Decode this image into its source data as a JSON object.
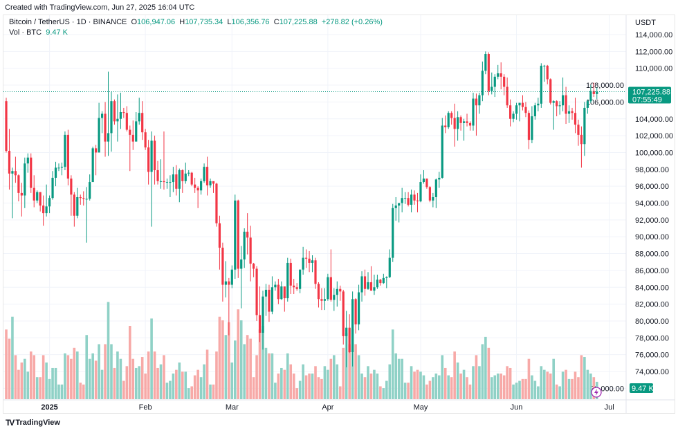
{
  "header": {
    "created": "Created with TradingView.com, Jun 27, 2025 16:04 UTC"
  },
  "legend": {
    "symbol": "Bitcoin / TetherUS · 1D · BINANCE",
    "o_label": "O",
    "o": "106,947.06",
    "h_label": "H",
    "h": "107,735.34",
    "l_label": "L",
    "l": "106,356.76",
    "c_label": "C",
    "c": "107,225.88",
    "change": "+278.82 (+0.26%)",
    "vol_label": "Vol · BTC",
    "vol": "9.47 K"
  },
  "footer": {
    "brand": "TradingView"
  },
  "chart_data": {
    "type": "candlestick",
    "currency": "USDT",
    "start_date": "2024-12-18",
    "interval": "1D",
    "first_open": 106100,
    "close": [
      100200,
      97500,
      97800,
      97300,
      95200,
      94900,
      98700,
      99400,
      95800,
      94300,
      95300,
      93700,
      92800,
      93600,
      94600,
      97000,
      98200,
      98200,
      98300,
      102100,
      96900,
      95000,
      92500,
      94700,
      94600,
      94500,
      94500,
      96500,
      100500,
      100000,
      104100,
      104600,
      101300,
      102300,
      106100,
      103700,
      104000,
      104800,
      104700,
      102700,
      102100,
      101300,
      103700,
      104700,
      102400,
      100600,
      97700,
      101400,
      97900,
      96600,
      96600,
      96500,
      96500,
      96500,
      97400,
      95700,
      97900,
      96600,
      97500,
      97600,
      96200,
      95800,
      95500,
      96600,
      98300,
      96100,
      96600,
      96300,
      91600,
      88700,
      84300,
      84700,
      84300,
      86100,
      94300,
      86200,
      87300,
      90600,
      89900,
      86800,
      86200,
      80700,
      78600,
      82900,
      83700,
      81100,
      84000,
      84300,
      82600,
      84100,
      82700,
      86900,
      84200,
      84000,
      83800,
      86100,
      87500,
      87400,
      86900,
      87200,
      84400,
      82600,
      82400,
      82600,
      85200,
      82500,
      83100,
      83800,
      83500,
      78200,
      79200,
      76300,
      82600,
      79600,
      83400,
      85300,
      83800,
      84600,
      83600,
      84000,
      84900,
      84500,
      85100,
      85200,
      87500,
      93400,
      93700,
      94000,
      94600,
      94600,
      93800,
      95000,
      94300,
      94200,
      96500,
      96900,
      95900,
      94300,
      94700,
      96800,
      97000,
      103200,
      103000,
      104700,
      104100,
      102800,
      104200,
      103500,
      103700,
      103500,
      103200,
      106400,
      105600,
      106800,
      109700,
      111700,
      107300,
      107800,
      109000,
      109400,
      109000,
      107800,
      105600,
      104000,
      104600,
      105600,
      105900,
      105400,
      104700,
      101500,
      104300,
      105600,
      105800,
      110300,
      110300,
      108700,
      105900,
      106100,
      105500,
      105600,
      106800,
      104600,
      104900,
      104700,
      103300,
      102100,
      101000,
      105300,
      106100,
      107300,
      106947,
      107226
    ],
    "high": [
      106500,
      102800,
      98200,
      99500,
      97400,
      96400,
      99400,
      99900,
      99900,
      97300,
      95500,
      95300,
      94900,
      96200,
      94900,
      97800,
      98900,
      98700,
      98800,
      102500,
      102700,
      97300,
      95300,
      95800,
      95000,
      95400,
      95900,
      97400,
      100700,
      100900,
      105900,
      104900,
      106000,
      109600,
      107200,
      106300,
      106900,
      107100,
      105300,
      105500,
      103200,
      103800,
      104800,
      106500,
      106100,
      102800,
      101500,
      102500,
      102000,
      99000,
      99200,
      102500,
      96900,
      97300,
      98300,
      98500,
      98100,
      98000,
      98800,
      97900,
      97700,
      97000,
      96000,
      96900,
      98700,
      99500,
      96900,
      96500,
      96400,
      92500,
      89300,
      87100,
      85100,
      86600,
      95000,
      94400,
      88900,
      91000,
      92800,
      91300,
      86900,
      86500,
      84100,
      83600,
      84400,
      84300,
      85300,
      84700,
      85000,
      84700,
      84100,
      87500,
      87400,
      85000,
      84500,
      86100,
      88800,
      88500,
      88300,
      87800,
      87500,
      84600,
      83900,
      83900,
      85600,
      88500,
      83900,
      84700,
      84200,
      83700,
      81200,
      80800,
      83500,
      82700,
      84300,
      85900,
      86100,
      85800,
      86500,
      85500,
      85500,
      85000,
      85600,
      85300,
      88500,
      93900,
      94700,
      94000,
      95800,
      95300,
      95300,
      95600,
      95500,
      95200,
      97400,
      97900,
      96900,
      96000,
      95200,
      96900,
      97700,
      104100,
      104400,
      104900,
      104900,
      105800,
      104900,
      104400,
      104000,
      104600,
      103700,
      107100,
      107000,
      107100,
      110800,
      112000,
      111900,
      109500,
      109300,
      110400,
      110700,
      109300,
      108900,
      106300,
      104900,
      105900,
      105900,
      106800,
      106000,
      105000,
      105500,
      105900,
      106500,
      110600,
      110400,
      110400,
      108800,
      106200,
      106200,
      106100,
      108900,
      107800,
      105600,
      105300,
      106500,
      103900,
      103100,
      106000,
      106300,
      108000,
      108300,
      107735
    ],
    "low": [
      100000,
      95600,
      92200,
      96400,
      94200,
      92400,
      93400,
      97600,
      95200,
      93500,
      94000,
      93000,
      91300,
      92400,
      92800,
      94400,
      96000,
      97800,
      97300,
      97900,
      96100,
      92500,
      91200,
      92200,
      93800,
      93700,
      89300,
      94300,
      96500,
      97300,
      100000,
      102300,
      99500,
      99600,
      100100,
      103300,
      101300,
      102800,
      104100,
      102500,
      97800,
      100300,
      101300,
      103300,
      101500,
      100300,
      96200,
      91200,
      96200,
      96200,
      95700,
      95600,
      95700,
      94700,
      95300,
      94900,
      94100,
      95200,
      96300,
      97200,
      96000,
      95200,
      93400,
      95000,
      96400,
      94900,
      95800,
      95200,
      91200,
      86100,
      82300,
      82800,
      78300,
      83900,
      85000,
      85100,
      81500,
      86300,
      87900,
      84700,
      85200,
      80000,
      77500,
      76600,
      80600,
      79900,
      80800,
      83600,
      82000,
      82500,
      81100,
      82300,
      83200,
      83200,
      83600,
      83300,
      85500,
      86300,
      85800,
      85800,
      83800,
      81600,
      81300,
      81300,
      82400,
      82300,
      81200,
      81700,
      82400,
      77200,
      74500,
      76200,
      74600,
      78500,
      78900,
      82300,
      83000,
      83700,
      83600,
      83100,
      83800,
      84200,
      84400,
      83900,
      85100,
      87000,
      91900,
      91700,
      92900,
      93900,
      93600,
      92900,
      93800,
      92900,
      94100,
      96300,
      95700,
      94100,
      93500,
      93400,
      95800,
      96900,
      102300,
      102800,
      103300,
      100700,
      101400,
      102600,
      101400,
      103100,
      102600,
      102600,
      102000,
      104600,
      106100,
      109300,
      106800,
      106900,
      106600,
      108700,
      107500,
      106800,
      105300,
      103100,
      103600,
      103900,
      103700,
      105000,
      104200,
      100400,
      101100,
      103900,
      104900,
      105300,
      108400,
      108100,
      105700,
      102700,
      104300,
      104500,
      104900,
      103400,
      103500,
      103900,
      102300,
      100800,
      98200,
      99600,
      104600,
      105900,
      106600,
      106357
    ],
    "volume_k": [
      38,
      33,
      45,
      24,
      16,
      20,
      22,
      15,
      26,
      24,
      12,
      12,
      24,
      20,
      11,
      17,
      17,
      8,
      8,
      25,
      24,
      22,
      28,
      26,
      9,
      8,
      35,
      22,
      25,
      21,
      30,
      16,
      30,
      53,
      30,
      17,
      26,
      22,
      10,
      18,
      40,
      22,
      17,
      18,
      23,
      14,
      26,
      44,
      26,
      17,
      19,
      24,
      9,
      10,
      14,
      16,
      20,
      15,
      15,
      6,
      7,
      13,
      16,
      12,
      19,
      27,
      8,
      8,
      26,
      45,
      43,
      35,
      42,
      20,
      32,
      49,
      43,
      30,
      35,
      33,
      12,
      24,
      38,
      40,
      28,
      25,
      25,
      9,
      14,
      17,
      16,
      25,
      19,
      14,
      6,
      10,
      19,
      13,
      14,
      14,
      18,
      12,
      11,
      18,
      16,
      22,
      24,
      19,
      7,
      28,
      36,
      30,
      38,
      30,
      24,
      14,
      12,
      18,
      14,
      16,
      14,
      7,
      6,
      10,
      19,
      38,
      25,
      22,
      22,
      9,
      9,
      18,
      15,
      16,
      15,
      13,
      8,
      10,
      12,
      14,
      13,
      24,
      17,
      13,
      12,
      26,
      20,
      14,
      16,
      12,
      8,
      18,
      24,
      18,
      30,
      34,
      28,
      12,
      13,
      14,
      14,
      13,
      18,
      17,
      8,
      9,
      10,
      11,
      11,
      22,
      13,
      10,
      7,
      18,
      16,
      15,
      14,
      22,
      8,
      7,
      15,
      16,
      11,
      11,
      15,
      12,
      24,
      23,
      16,
      14,
      12,
      9.47
    ],
    "y_ticks": [
      "114,000.00",
      "112,000.00",
      "110,000.00",
      "108,000.00",
      "106,000.00",
      "104,000.00",
      "102,000.00",
      "100,000.00",
      "98,000.00",
      "96,000.00",
      "94,000.00",
      "92,000.00",
      "90,000.00",
      "88,000.00",
      "86,000.00",
      "84,000.00",
      "82,000.00",
      "80,000.00",
      "78,000.00",
      "76,000.00",
      "74,000.00",
      "72,000.00"
    ],
    "y_tick_values": [
      114000,
      112000,
      110000,
      108000,
      106000,
      104000,
      102000,
      100000,
      98000,
      96000,
      94000,
      92000,
      90000,
      88000,
      86000,
      84000,
      82000,
      80000,
      78000,
      76000,
      74000,
      72000
    ],
    "x_ticks": [
      {
        "label": "2025",
        "date": "2025-01-01"
      },
      {
        "label": "Feb",
        "date": "2025-02-01"
      },
      {
        "label": "Mar",
        "date": "2025-03-01"
      },
      {
        "label": "Apr",
        "date": "2025-04-01"
      },
      {
        "label": "May",
        "date": "2025-05-01"
      },
      {
        "label": "Jun",
        "date": "2025-06-01"
      },
      {
        "label": "Jul",
        "date": "2025-07-01"
      }
    ],
    "last_price_label": "107,225.88",
    "countdown": "07:55:49",
    "volume_label": "9.47 K",
    "grid": true,
    "colors": {
      "up": "#089981",
      "down": "#F23645",
      "up_volume": "#8fd1c6",
      "down_volume": "#f7a9a7"
    }
  }
}
